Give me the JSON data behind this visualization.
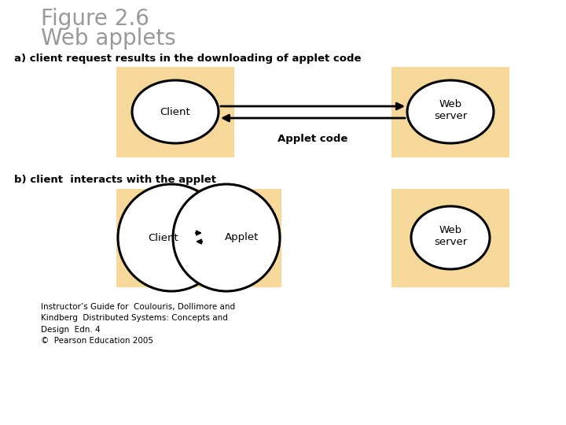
{
  "title_line1": "Figure 2.6",
  "title_line2": "Web applets",
  "title_color": "#999999",
  "bg_color": "#ffffff",
  "box_bg": "#f5d89a",
  "border_color": "#cccccc",
  "label_a": "a) client request results in the downloading of applet code",
  "label_b": "b) client  interacts with the applet",
  "footer": "Instructor’s Guide for  Coulouris, Dollimore and\nKindberg  Distributed Systems: Concepts and\nDesign  Edn. 4\n©  Pearson Education 2005",
  "ellipse_color": "#ffffff",
  "ellipse_edge": "#000000",
  "applet_code_label": "Applet code"
}
